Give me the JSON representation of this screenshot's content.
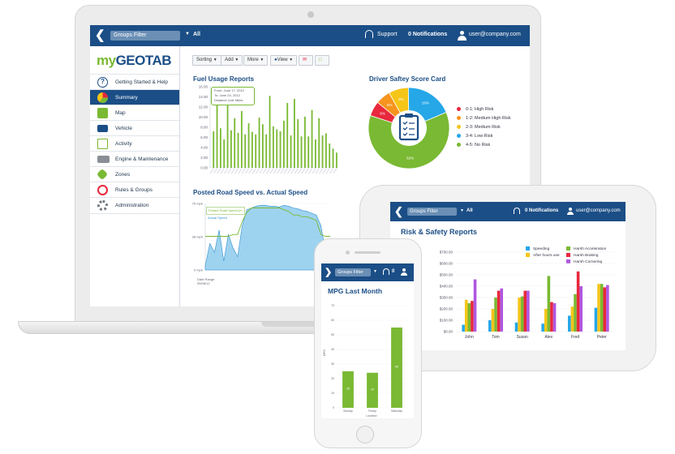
{
  "desktop": {
    "topbar": {
      "groups_filter": "Groups Filter",
      "all": "All",
      "support": "Support",
      "notifications": "0 Notifications",
      "user": "user@company.com"
    },
    "logo": {
      "my": "my",
      "brand": "GEOTAB"
    },
    "nav": [
      {
        "label": "Getting Started & Help"
      },
      {
        "label": "Summary"
      },
      {
        "label": "Map"
      },
      {
        "label": "Vehicle"
      },
      {
        "label": "Activity"
      },
      {
        "label": "Engine & Maintenance"
      },
      {
        "label": "Zones"
      },
      {
        "label": "Rules & Groups"
      },
      {
        "label": "Administration"
      }
    ],
    "toolbar": {
      "sorting": "Sorting",
      "add": "Add",
      "more": "More",
      "view": "View"
    },
    "fuel": {
      "title": "Fuel Usage Reports",
      "tooltip": {
        "from": "From: June 17, 2012",
        "to": "To: June 24, 2012",
        "unit": "Distance Unit: Miles"
      },
      "y_ticks": [
        "16.00",
        "14.00",
        "12.00",
        "10.00",
        "8.00",
        "6.00",
        "4.00",
        "2.00",
        "0.00"
      ]
    },
    "safety": {
      "title": "Driver Saftey Score Card",
      "legend": [
        "0-1: High Risk",
        "1-2: Medium High Risk",
        "2-3: Medium Risk",
        "3-4: Low Risk",
        "4-5: No Risk"
      ],
      "slice_labels": [
        "6%",
        "6%",
        "8%",
        "19%",
        "62%"
      ]
    },
    "road": {
      "title": "Posted Road Speed vs. Actual Speed",
      "y_ticks": [
        "75 mph",
        "38 mph",
        "0 mph"
      ],
      "legend": [
        "Posted Road Speed (m",
        "Actual Speed"
      ],
      "x_label": "Date Range",
      "x_date": "05/08/12"
    }
  },
  "tablet": {
    "topbar": {
      "groups_filter": "Groups Filter",
      "all": "All",
      "notifications": "0 Notifications",
      "user": "user@company.com"
    },
    "title": "Risk & Safety Reports",
    "legend": [
      "Speeding",
      "After hours use",
      "Harsh Acceleration",
      "Harsh Braking",
      "Harsh Cornering"
    ]
  },
  "phone": {
    "topbar": {
      "groups_filter": "Groups Filter"
    },
    "title": "MPG Last Month",
    "x_label": "Location",
    "y_label": "MPG"
  },
  "colors": {
    "navy": "#1b4e86",
    "green": "#7ab933",
    "red": "#e8283c",
    "orange": "#f7941d",
    "yellow": "#f5c518",
    "blue": "#25a7e8",
    "magenta": "#e03c8a",
    "purple": "#b057e0"
  },
  "chart_data": [
    {
      "type": "bar",
      "title": "Fuel Usage Reports",
      "ylim": [
        0,
        16
      ],
      "values": [
        7.2,
        12.5,
        7.8,
        5.6,
        14.9,
        7.4,
        9.8,
        6.9,
        11.2,
        6.6,
        8.8,
        7.1,
        6.6,
        9.9,
        8.6,
        6.6,
        14.2,
        8.2,
        7.6,
        7.2,
        9.3,
        12.8,
        6.4,
        13.6,
        9.6,
        6.2,
        10.1,
        6.2,
        11.4,
        5.6,
        9.8,
        6.4,
        6.8,
        4.8,
        3.8,
        3.0
      ]
    },
    {
      "type": "pie",
      "title": "Driver Saftey Score Card",
      "categories": [
        "0-1: High Risk",
        "1-2: Medium High Risk",
        "2-3: Medium Risk",
        "3-4: Low Risk",
        "4-5: No Risk"
      ],
      "values": [
        6,
        6,
        8,
        19,
        62
      ]
    },
    {
      "type": "area",
      "title": "Posted Road Speed vs. Actual Speed",
      "ylim": [
        0,
        75
      ],
      "series": [
        {
          "name": "Posted Road Speed (m",
          "values": [
            38,
            38,
            38,
            38,
            38,
            38,
            40,
            40,
            55,
            65,
            70,
            70,
            70,
            70,
            70,
            70,
            70,
            68,
            66,
            62,
            62,
            60,
            60,
            58,
            56,
            40,
            38,
            38
          ]
        },
        {
          "name": "Actual Speed",
          "values": [
            5,
            30,
            20,
            45,
            10,
            40,
            25,
            15,
            50,
            68,
            70,
            72,
            73,
            73,
            72,
            72,
            71,
            73,
            72,
            70,
            69,
            67,
            66,
            64,
            62,
            50,
            20,
            10
          ]
        }
      ]
    },
    {
      "type": "bar",
      "title": "Risk & Safety Reports",
      "categories": [
        "John",
        "Tom",
        "Susan",
        "Alex",
        "Fred",
        "Peter"
      ],
      "ylim": [
        0,
        700
      ],
      "y_ticks": [
        "$700.00",
        "$600.00",
        "$500.00",
        "$400.00",
        "$300.00",
        "$200.00",
        "$100.00",
        "$0.00"
      ],
      "series": [
        {
          "name": "Speeding",
          "values": [
            60,
            100,
            80,
            70,
            140,
            210
          ]
        },
        {
          "name": "After hours use",
          "values": [
            280,
            200,
            300,
            200,
            220,
            420
          ]
        },
        {
          "name": "Harsh Acceleration",
          "values": [
            250,
            300,
            310,
            490,
            330,
            420
          ]
        },
        {
          "name": "Harsh Braking",
          "values": [
            270,
            360,
            360,
            260,
            530,
            390
          ]
        },
        {
          "name": "Harsh Cornering",
          "values": [
            460,
            380,
            360,
            250,
            400,
            410
          ]
        }
      ]
    },
    {
      "type": "bar",
      "title": "MPG Last Month",
      "categories": [
        "Sunday",
        "Friday",
        "Saturday"
      ],
      "values": [
        25,
        24,
        55
      ],
      "ylim": [
        0,
        70
      ],
      "y_ticks": [
        "70",
        "60",
        "50",
        "40",
        "30",
        "20",
        "10",
        "0"
      ],
      "value_labels": [
        "25",
        "24",
        "55"
      ]
    }
  ]
}
